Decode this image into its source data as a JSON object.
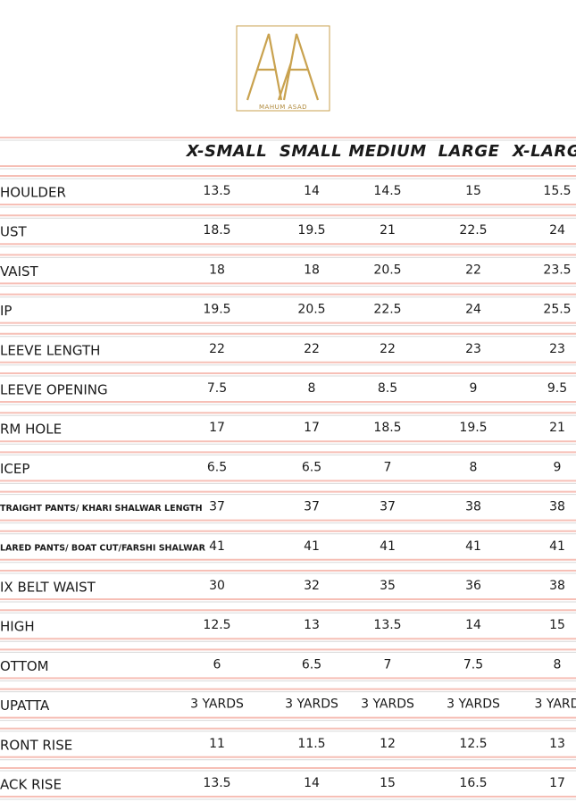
{
  "logo": {
    "brand": "MAHUM ASAD"
  },
  "table": {
    "header": [
      "X-SMALL",
      "SMALL",
      "MEDIUM",
      "LARGE",
      "X-LARG"
    ],
    "rows": [
      [
        "HOULDER",
        "13.5",
        "14",
        "14.5",
        "15",
        "15.5"
      ],
      [
        "UST",
        "18.5",
        "19.5",
        "21",
        "22.5",
        "24"
      ],
      [
        "VAIST",
        "18",
        "18",
        "20.5",
        "22",
        "23.5"
      ],
      [
        "IP",
        "19.5",
        "20.5",
        "22.5",
        "24",
        "25.5"
      ],
      [
        "LEEVE LENGTH",
        "22",
        "22",
        "22",
        "23",
        "23"
      ],
      [
        "LEEVE OPENING",
        "7.5",
        "8",
        "8.5",
        "9",
        "9.5"
      ],
      [
        "RM HOLE",
        "17",
        "17",
        "18.5",
        "19.5",
        "21"
      ],
      [
        "ICEP",
        "6.5",
        "6.5",
        "7",
        "8",
        "9"
      ],
      [
        "TRAIGHT PANTS/ KHARI SHALWAR LENGTH",
        "37",
        "37",
        "37",
        "38",
        "38"
      ],
      [
        "LARED PANTS/ BOAT CUT/FARSHI SHALWAR",
        "41",
        "41",
        "41",
        "41",
        "41"
      ],
      [
        "IX BELT WAIST",
        "30",
        "32",
        "35",
        "36",
        "38"
      ],
      [
        "HIGH",
        "12.5",
        "13",
        "13.5",
        "14",
        "15"
      ],
      [
        "OTTOM",
        "6",
        "6.5",
        "7",
        "7.5",
        "8"
      ],
      [
        "UPATTA",
        "3 YARDS",
        "3 YARDS",
        "3 YARDS",
        "3 YARDS",
        "3 YARD"
      ],
      [
        "RONT RISE",
        "11",
        "11.5",
        "12",
        "12.5",
        "13"
      ],
      [
        "ACK RISE",
        "13.5",
        "14",
        "15",
        "16.5",
        "17"
      ]
    ]
  }
}
